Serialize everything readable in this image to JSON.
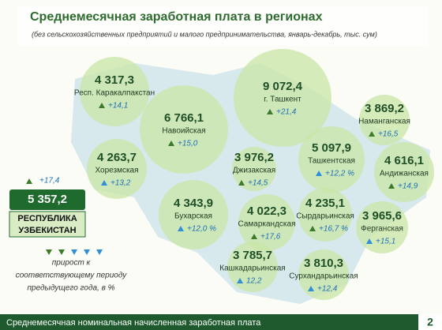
{
  "header": {
    "title": "Среднемесячная заработная плата в регионах",
    "subtitle": "(без сельскохозяйственных предприятий и малого предпринимательства, январь-декабрь, тыс. сум)"
  },
  "regions": [
    {
      "name": "Респ. Каракалпакстан",
      "value": "4 317,3",
      "growth": "+14,1",
      "color": "#3d7a2a"
    },
    {
      "name": "Навоийская",
      "value": "6 766,1",
      "growth": "+15,0",
      "color": "#3d7a2a"
    },
    {
      "name": "г. Ташкент",
      "value": "9 072,4",
      "growth": "+21,4",
      "color": "#3d7a2a"
    },
    {
      "name": "Наманганская",
      "value": "3 869,2",
      "growth": "+16,5",
      "color": "#3d7a2a"
    },
    {
      "name": "Хорезмская",
      "value": "4 263,7",
      "growth": "+13,2",
      "color": "#2f8fd8"
    },
    {
      "name": "Джизакская",
      "value": "3 976,2",
      "growth": "+14,5",
      "color": "#3d7a2a"
    },
    {
      "name": "Ташкентская",
      "value": "5 097,9",
      "growth": "+12,2 %",
      "color": "#2f8fd8"
    },
    {
      "name": "Андижанская",
      "value": "4 616,1",
      "growth": "+14,9",
      "color": "#3d7a2a"
    },
    {
      "name": "Бухарская",
      "value": "4 343,9",
      "growth": "+12,0 %",
      "color": "#2f8fd8"
    },
    {
      "name": "Самаркандская",
      "value": "4 022,3",
      "growth": "+17,6",
      "color": "#3d7a2a"
    },
    {
      "name": "Сырдарьинская",
      "value": "4 235,1",
      "growth": "+16,7 %",
      "color": "#3d7a2a"
    },
    {
      "name": "Ферганская",
      "value": "3 965,6",
      "growth": "+15,1",
      "color": "#2f8fd8"
    },
    {
      "name": "Кашкадарьинская",
      "value": "3 785,7",
      "growth": "12,2",
      "color": "#2f8fd8"
    },
    {
      "name": "Сурхандарьинская",
      "value": "3 810,3",
      "growth": "+12,4",
      "color": "#2f8fd8"
    }
  ],
  "republic": {
    "growth": "+17,4",
    "value": "5 357,2",
    "name_line1": "РЕСПУБЛИКА",
    "name_line2": "УЗБЕКИСТАН"
  },
  "legend": {
    "line1": "прирост к",
    "line2": "соответствующему периоду",
    "line3": "предыдущего года, в %"
  },
  "footer": {
    "text": "Среднемесячная номинальная начисленная заработная плата",
    "page": "2"
  }
}
